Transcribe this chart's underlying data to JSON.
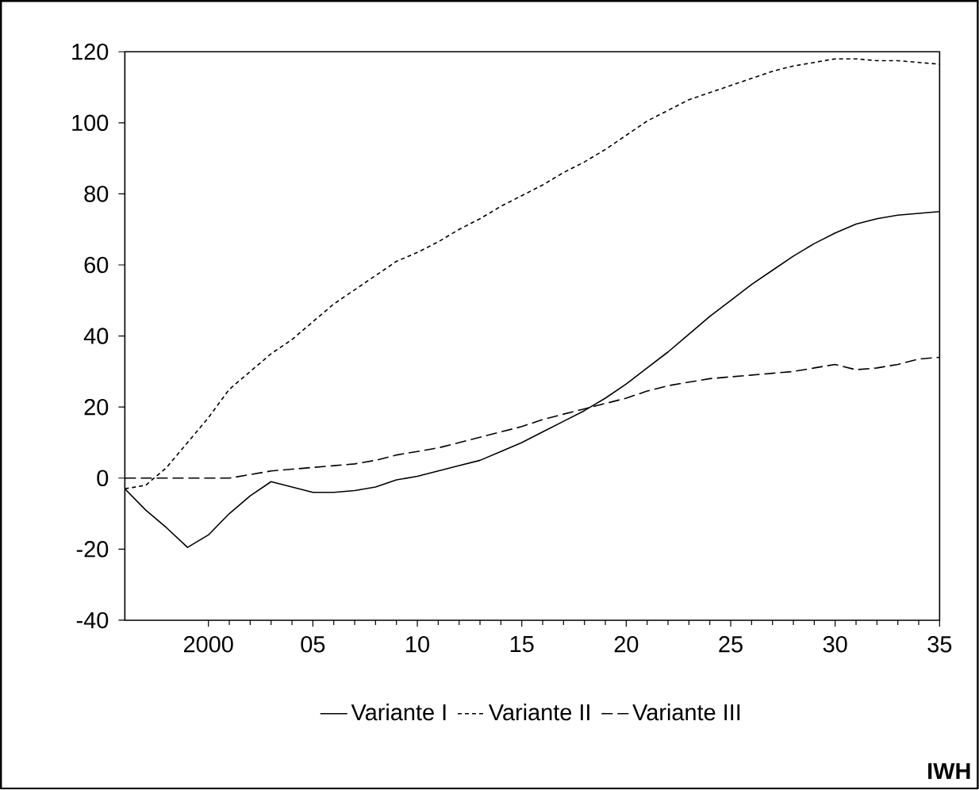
{
  "chart_data": {
    "type": "line",
    "x": [
      1996,
      1997,
      1998,
      1999,
      2000,
      2001,
      2002,
      2003,
      2004,
      2005,
      2006,
      2007,
      2008,
      2009,
      2010,
      2011,
      2012,
      2013,
      2014,
      2015,
      2016,
      2017,
      2018,
      2019,
      2020,
      2021,
      2022,
      2023,
      2024,
      2025,
      2026,
      2027,
      2028,
      2029,
      2030,
      2031,
      2032,
      2033,
      2034,
      2035
    ],
    "series": [
      {
        "name": "Variante I",
        "color": "#000000",
        "line_style": "solid",
        "values": [
          -3,
          -9,
          -14,
          -19.5,
          -16,
          -10,
          -5,
          -1,
          -2.5,
          -4,
          -4,
          -3.5,
          -2.5,
          -0.5,
          0.5,
          2,
          3.5,
          5,
          7.5,
          10,
          13,
          16,
          19,
          22.5,
          26.5,
          31,
          35.5,
          40.5,
          45.5,
          50,
          54.5,
          58.5,
          62.5,
          66,
          69,
          71.5,
          73,
          74,
          74.5,
          75
        ]
      },
      {
        "name": "Variante II",
        "color": "#000000",
        "line_style": "dotted",
        "values": [
          -3,
          -2,
          3,
          10,
          17,
          25,
          30,
          35,
          39,
          44,
          49,
          53,
          57,
          61,
          63.5,
          66.5,
          70,
          73,
          76.5,
          79.5,
          82.5,
          86,
          89,
          92.5,
          96.5,
          100.5,
          103.5,
          106.5,
          108.5,
          110.5,
          112.5,
          114.5,
          116,
          117,
          118,
          118,
          117.5,
          117.5,
          117,
          116.5
        ]
      },
      {
        "name": "Variante III",
        "color": "#000000",
        "line_style": "dashed",
        "values": [
          0,
          0,
          0,
          0,
          0,
          0,
          1,
          2,
          2.5,
          3,
          3.5,
          4,
          5,
          6.5,
          7.5,
          8.5,
          10,
          11.5,
          13,
          14.5,
          16.5,
          18,
          19.5,
          21,
          22.5,
          24.5,
          26,
          27,
          28,
          28.5,
          29,
          29.5,
          30,
          31,
          32,
          30.5,
          31,
          32,
          33.5,
          34
        ]
      }
    ],
    "xlim": [
      1996,
      2035
    ],
    "xticks": [
      2000,
      {
        "value": 2005,
        "label": "05"
      },
      {
        "value": 2010,
        "label": "10"
      },
      {
        "value": 2015,
        "label": "15"
      },
      {
        "value": 2020,
        "label": "20"
      },
      {
        "value": 2025,
        "label": "25"
      },
      {
        "value": 2030,
        "label": "30"
      },
      {
        "value": 2035,
        "label": "35"
      }
    ],
    "ylim": [
      -40,
      120
    ],
    "yticks": [
      -40,
      -20,
      0,
      20,
      40,
      60,
      80,
      100,
      120
    ],
    "legend": "bottom",
    "grid": false,
    "annotations": [
      "IWH"
    ]
  }
}
